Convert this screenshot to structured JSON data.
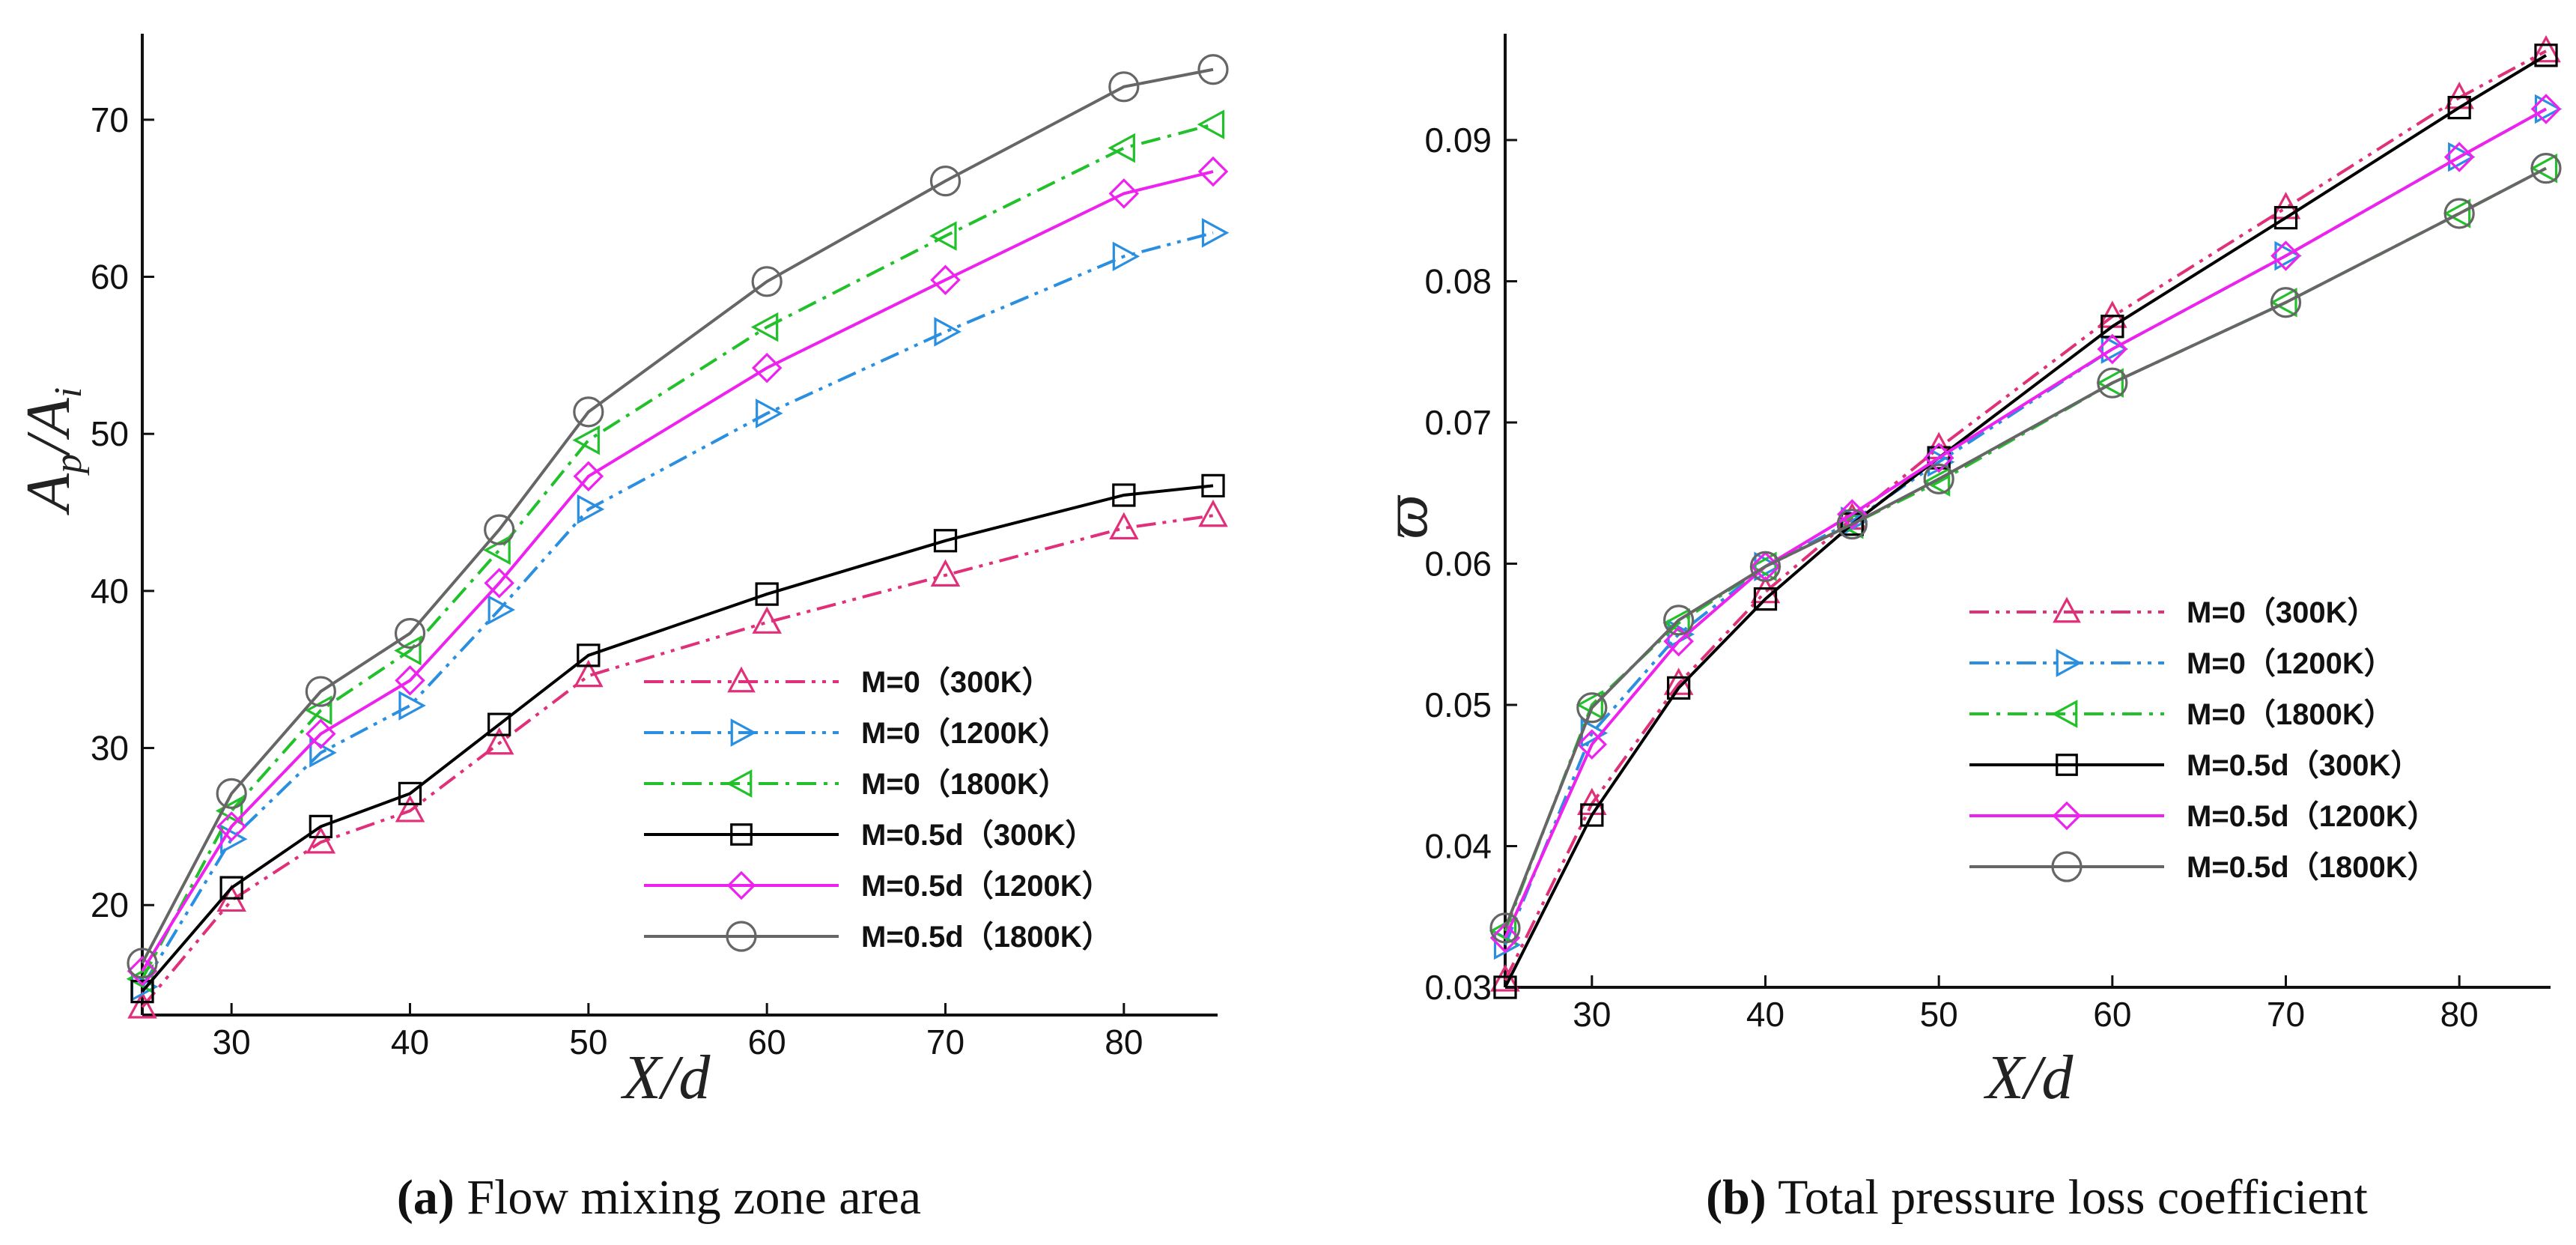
{
  "chart_data": [
    {
      "type": "line",
      "panel": "a",
      "caption_letter": "(a)",
      "caption_text": " Flow mixing zone area",
      "xlabel": "X/d",
      "ylabel": "Ap/Ai",
      "ylabel_base": "A",
      "ylabel_sub1": "p",
      "ylabel_slash": "/A",
      "ylabel_sub2": "i",
      "xlim": [
        25,
        85
      ],
      "ylim": [
        13,
        75
      ],
      "xticks": [
        30,
        40,
        50,
        60,
        70,
        80
      ],
      "yticks": [
        20,
        30,
        40,
        50,
        60,
        70
      ],
      "tick_labels_x": [
        "30",
        "40",
        "50",
        "60",
        "70",
        "80"
      ],
      "tick_labels_y": [
        "20",
        "30",
        "40",
        "50",
        "60",
        "70"
      ],
      "legend_position": "lower-right",
      "x": [
        25,
        30,
        35,
        40,
        45,
        50,
        60,
        70,
        80,
        85
      ],
      "series": [
        {
          "name": "M=0（300K）",
          "color": "#e0307a",
          "dash": "dashdotdot",
          "marker": "triangle-up",
          "values": [
            13.5,
            20.3,
            24.0,
            26.0,
            30.3,
            34.6,
            38.0,
            41.0,
            44.0,
            44.8
          ]
        },
        {
          "name": "M=0（1200K）",
          "color": "#2a8fe0",
          "dash": "dashdotdot",
          "marker": "triangle-right",
          "values": [
            14.8,
            24.2,
            29.7,
            32.7,
            38.8,
            45.2,
            51.3,
            56.5,
            61.3,
            62.8
          ]
        },
        {
          "name": "M=0（1800K）",
          "color": "#22c02a",
          "dash": "dashdot",
          "marker": "triangle-left",
          "values": [
            15.3,
            26.0,
            32.4,
            36.2,
            42.6,
            49.6,
            56.8,
            62.6,
            68.2,
            69.7
          ]
        },
        {
          "name": "M=0.5d（300K）",
          "color": "#000000",
          "dash": "solid",
          "marker": "square",
          "values": [
            14.5,
            21.1,
            25.0,
            27.1,
            31.5,
            35.9,
            39.8,
            43.2,
            46.1,
            46.7
          ]
        },
        {
          "name": "M=0.5d（1200K）",
          "color": "#ee22ee",
          "dash": "solid",
          "marker": "diamond",
          "values": [
            15.8,
            25.0,
            30.9,
            34.3,
            40.5,
            47.3,
            54.2,
            59.8,
            65.3,
            66.7
          ]
        },
        {
          "name": "M=0.5d（1800K）",
          "color": "#666666",
          "dash": "solid",
          "marker": "circle",
          "values": [
            16.3,
            27.1,
            33.6,
            37.3,
            43.9,
            51.4,
            59.7,
            66.1,
            72.1,
            73.2
          ]
        }
      ]
    },
    {
      "type": "line",
      "panel": "b",
      "caption_letter": "(b)",
      "caption_text": " Total pressure loss coefficient",
      "xlabel": "X/d",
      "ylabel": "ϖ",
      "xlim": [
        25,
        85
      ],
      "ylim": [
        0.03,
        0.097
      ],
      "xticks": [
        30,
        40,
        50,
        60,
        70,
        80
      ],
      "yticks": [
        0.03,
        0.04,
        0.05,
        0.06,
        0.07,
        0.08,
        0.09
      ],
      "tick_labels_x": [
        "30",
        "40",
        "50",
        "60",
        "70",
        "80"
      ],
      "tick_labels_y": [
        "0.03",
        "0.04",
        "0.05",
        "0.06",
        "0.07",
        "0.08",
        "0.09"
      ],
      "legend_position": "lower-right",
      "x": [
        25,
        30,
        35,
        40,
        45,
        50,
        60,
        70,
        80,
        85
      ],
      "series": [
        {
          "name": "M=0（300K）",
          "color": "#e0307a",
          "dash": "dashdotdot",
          "marker": "triangle-up",
          "values": [
            0.0305,
            0.043,
            0.0515,
            0.058,
            0.0632,
            0.0682,
            0.0775,
            0.0852,
            0.093,
            0.0963
          ]
        },
        {
          "name": "M=0（1200K）",
          "color": "#2a8fe0",
          "dash": "dashdotdot",
          "marker": "triangle-right",
          "values": [
            0.033,
            0.048,
            0.055,
            0.0598,
            0.063,
            0.0672,
            0.0752,
            0.0818,
            0.0888,
            0.0922
          ]
        },
        {
          "name": "M=0（1800K）",
          "color": "#22c02a",
          "dash": "dashdot",
          "marker": "triangle-left",
          "values": [
            0.034,
            0.05,
            0.0558,
            0.0598,
            0.0628,
            0.0658,
            0.0728,
            0.0785,
            0.0848,
            0.088
          ]
        },
        {
          "name": "M=0.5d（300K）",
          "color": "#000000",
          "dash": "solid",
          "marker": "square",
          "values": [
            0.03,
            0.0422,
            0.0512,
            0.0575,
            0.0628,
            0.0675,
            0.0768,
            0.0845,
            0.0923,
            0.096
          ]
        },
        {
          "name": "M=0.5d（1200K）",
          "color": "#ee22ee",
          "dash": "solid",
          "marker": "diamond",
          "values": [
            0.0335,
            0.0472,
            0.0545,
            0.0598,
            0.0635,
            0.0675,
            0.0752,
            0.0818,
            0.0888,
            0.0922
          ]
        },
        {
          "name": "M=0.5d（1800K）",
          "color": "#666666",
          "dash": "solid",
          "marker": "circle",
          "values": [
            0.0342,
            0.0498,
            0.056,
            0.0598,
            0.0628,
            0.066,
            0.0728,
            0.0785,
            0.0848,
            0.088
          ]
        }
      ]
    }
  ]
}
